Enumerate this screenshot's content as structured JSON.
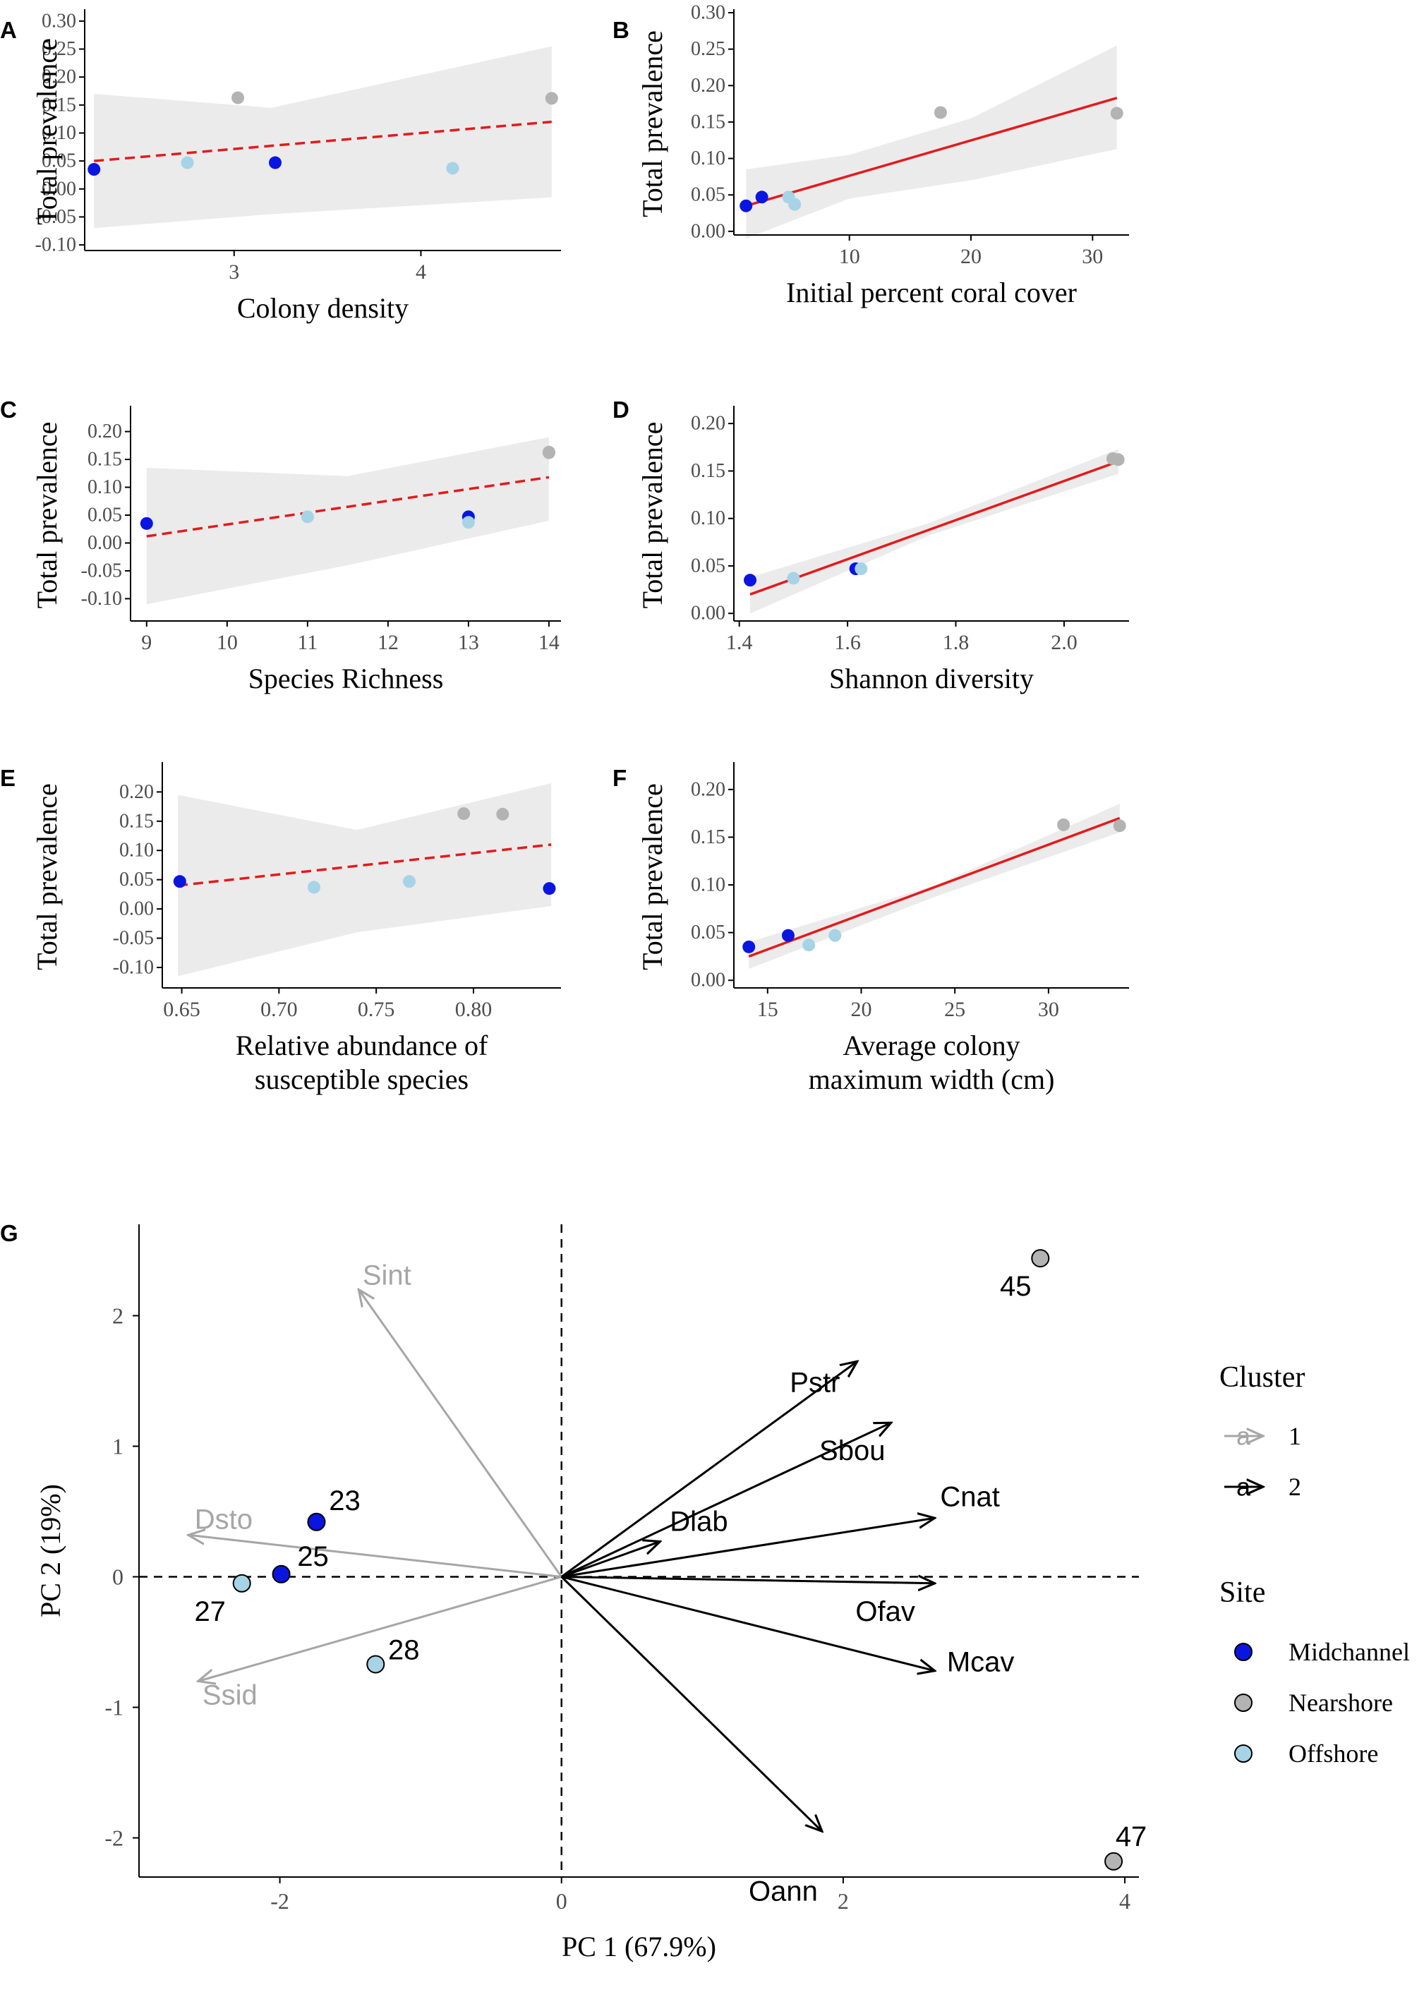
{
  "colors": {
    "midchannel": "#0a16e0",
    "nearshore": "#b3b3b3",
    "offshore": "#a7d3e6",
    "fit_line": "#e41a1c",
    "ci_band": "#ebebeb",
    "axis": "#000000",
    "cluster1": "#a6a6a6",
    "cluster2": "#000000"
  },
  "chart_data": [
    {
      "panel": "A",
      "type": "scatter",
      "xlabel": [
        "Colony density"
      ],
      "ylabel": "Total prevalence",
      "xlim": [
        2.2,
        4.75
      ],
      "ylim": [
        -0.11,
        0.315
      ],
      "xticks": [
        3,
        4
      ],
      "xtick_labels": [
        "3",
        "4"
      ],
      "yticks": [
        0.3,
        0.25,
        0.2,
        0.15,
        0.1,
        0.05,
        0.0,
        -0.05,
        -0.1
      ],
      "ytick_labels": [
        "0.30",
        "0.25",
        "0.20",
        "0.15",
        "0.10",
        "0.05",
        "0.00",
        "-0.05",
        "-0.10"
      ],
      "fit": {
        "style": "dashed",
        "x": [
          2.25,
          4.7
        ],
        "y": [
          0.05,
          0.12
        ]
      },
      "ci": {
        "x": [
          2.25,
          3.2,
          4.7
        ],
        "upper": [
          0.17,
          0.145,
          0.255
        ],
        "lower": [
          -0.07,
          -0.045,
          -0.015
        ]
      },
      "points": [
        {
          "x": 2.25,
          "y": 0.035,
          "site": "midchannel"
        },
        {
          "x": 3.22,
          "y": 0.047,
          "site": "midchannel"
        },
        {
          "x": 2.75,
          "y": 0.047,
          "site": "offshore"
        },
        {
          "x": 4.17,
          "y": 0.037,
          "site": "offshore"
        },
        {
          "x": 3.02,
          "y": 0.163,
          "site": "nearshore"
        },
        {
          "x": 4.7,
          "y": 0.162,
          "site": "nearshore"
        }
      ]
    },
    {
      "panel": "B",
      "type": "scatter",
      "xlabel": [
        "Initial percent coral cover"
      ],
      "ylabel": "Total prevalence",
      "xlim": [
        0.5,
        33.0
      ],
      "ylim": [
        -0.005,
        0.3
      ],
      "xticks": [
        10,
        20,
        30
      ],
      "xtick_labels": [
        "10",
        "20",
        "30"
      ],
      "yticks": [
        0.3,
        0.25,
        0.2,
        0.15,
        0.1,
        0.05,
        0.0
      ],
      "ytick_labels": [
        "0.30",
        "0.25",
        "0.20",
        "0.15",
        "0.10",
        "0.05",
        "0.00"
      ],
      "fit": {
        "style": "solid",
        "x": [
          1.5,
          32.0
        ],
        "y": [
          0.035,
          0.183
        ]
      },
      "ci": {
        "x": [
          1.5,
          10.0,
          20.0,
          32.0
        ],
        "upper": [
          0.085,
          0.105,
          0.155,
          0.255
        ],
        "lower": [
          -0.01,
          0.045,
          0.07,
          0.113
        ]
      },
      "points": [
        {
          "x": 1.5,
          "y": 0.035,
          "site": "midchannel"
        },
        {
          "x": 2.8,
          "y": 0.047,
          "site": "midchannel"
        },
        {
          "x": 5.0,
          "y": 0.047,
          "site": "offshore"
        },
        {
          "x": 5.5,
          "y": 0.037,
          "site": "offshore"
        },
        {
          "x": 17.5,
          "y": 0.163,
          "site": "nearshore"
        },
        {
          "x": 32.0,
          "y": 0.162,
          "site": "nearshore"
        }
      ]
    },
    {
      "panel": "C",
      "type": "scatter",
      "xlabel": [
        "Species Richness"
      ],
      "ylabel": "Total prevalence",
      "xlim": [
        8.8,
        14.15
      ],
      "ylim": [
        -0.14,
        0.24
      ],
      "xticks": [
        9,
        10,
        11,
        12,
        13,
        14
      ],
      "xtick_labels": [
        "9",
        "10",
        "11",
        "12",
        "13",
        "14"
      ],
      "yticks": [
        0.2,
        0.15,
        0.1,
        0.05,
        0.0,
        -0.05,
        -0.1
      ],
      "ytick_labels": [
        "0.20",
        "0.15",
        "0.10",
        "0.05",
        "0.00",
        "-0.05",
        "-0.10"
      ],
      "fit": {
        "style": "dashed",
        "x": [
          9,
          14
        ],
        "y": [
          0.012,
          0.118
        ]
      },
      "ci": {
        "x": [
          9,
          11.5,
          14
        ],
        "upper": [
          0.135,
          0.12,
          0.19
        ],
        "lower": [
          -0.11,
          -0.04,
          0.04
        ]
      },
      "points": [
        {
          "x": 9.0,
          "y": 0.035,
          "site": "midchannel"
        },
        {
          "x": 13.0,
          "y": 0.047,
          "site": "midchannel"
        },
        {
          "x": 11.0,
          "y": 0.047,
          "site": "offshore"
        },
        {
          "x": 13.0,
          "y": 0.037,
          "site": "offshore"
        },
        {
          "x": 14.0,
          "y": 0.163,
          "site": "nearshore"
        },
        {
          "x": 14.0,
          "y": 0.162,
          "site": "nearshore"
        }
      ]
    },
    {
      "panel": "D",
      "type": "scatter",
      "xlabel": [
        "Shannon diversity"
      ],
      "ylabel": "Total prevalence",
      "xlim": [
        1.39,
        2.12
      ],
      "ylim": [
        -0.008,
        0.215
      ],
      "xticks": [
        1.4,
        1.6,
        1.8,
        2.0
      ],
      "xtick_labels": [
        "1.4",
        "1.6",
        "1.8",
        "2.0"
      ],
      "yticks": [
        0.2,
        0.15,
        0.1,
        0.05,
        0.0
      ],
      "ytick_labels": [
        "0.20",
        "0.15",
        "0.10",
        "0.05",
        "0.00"
      ],
      "fit": {
        "style": "solid",
        "x": [
          1.42,
          2.1
        ],
        "y": [
          0.02,
          0.16
        ]
      },
      "ci": {
        "x": [
          1.42,
          1.75,
          2.1
        ],
        "upper": [
          0.038,
          0.095,
          0.173
        ],
        "lower": [
          0.0,
          0.082,
          0.147
        ]
      },
      "points": [
        {
          "x": 1.42,
          "y": 0.035,
          "site": "midchannel"
        },
        {
          "x": 1.615,
          "y": 0.047,
          "site": "midchannel"
        },
        {
          "x": 1.625,
          "y": 0.047,
          "site": "offshore"
        },
        {
          "x": 1.5,
          "y": 0.037,
          "site": "offshore"
        },
        {
          "x": 2.09,
          "y": 0.163,
          "site": "nearshore"
        },
        {
          "x": 2.1,
          "y": 0.162,
          "site": "nearshore"
        }
      ]
    },
    {
      "panel": "E",
      "type": "scatter",
      "xlabel": [
        "Relative abundance of",
        "susceptible species"
      ],
      "ylabel": "Total prevalence",
      "xlim": [
        0.64,
        0.845
      ],
      "ylim": [
        -0.135,
        0.245
      ],
      "xticks": [
        0.65,
        0.7,
        0.75,
        0.8
      ],
      "xtick_labels": [
        "0.65",
        "0.70",
        "0.75",
        "0.80"
      ],
      "yticks": [
        0.2,
        0.15,
        0.1,
        0.05,
        0.0,
        -0.05,
        -0.1
      ],
      "ytick_labels": [
        "0.20",
        "0.15",
        "0.10",
        "0.05",
        "0.00",
        "-0.05",
        "-0.10"
      ],
      "fit": {
        "style": "dashed",
        "x": [
          0.648,
          0.84
        ],
        "y": [
          0.04,
          0.11
        ]
      },
      "ci": {
        "x": [
          0.648,
          0.74,
          0.84
        ],
        "upper": [
          0.195,
          0.135,
          0.215
        ],
        "lower": [
          -0.115,
          -0.04,
          0.005
        ]
      },
      "points": [
        {
          "x": 0.649,
          "y": 0.047,
          "site": "midchannel"
        },
        {
          "x": 0.839,
          "y": 0.035,
          "site": "midchannel"
        },
        {
          "x": 0.718,
          "y": 0.037,
          "site": "offshore"
        },
        {
          "x": 0.767,
          "y": 0.047,
          "site": "offshore"
        },
        {
          "x": 0.795,
          "y": 0.163,
          "site": "nearshore"
        },
        {
          "x": 0.815,
          "y": 0.162,
          "site": "nearshore"
        }
      ]
    },
    {
      "panel": "F",
      "type": "scatter",
      "xlabel": [
        "Average colony",
        "maximum width (cm)"
      ],
      "ylabel": "Total prevalence",
      "xlim": [
        13.2,
        34.3
      ],
      "ylim": [
        -0.008,
        0.225
      ],
      "xticks": [
        15,
        20,
        25,
        30
      ],
      "xtick_labels": [
        "15",
        "20",
        "25",
        "30"
      ],
      "yticks": [
        0.2,
        0.15,
        0.1,
        0.05,
        0.0
      ],
      "ytick_labels": [
        "0.20",
        "0.15",
        "0.10",
        "0.05",
        "0.00"
      ],
      "fit": {
        "style": "solid",
        "x": [
          14.0,
          33.8
        ],
        "y": [
          0.025,
          0.17
        ]
      },
      "ci": {
        "x": [
          14.0,
          24.0,
          33.8
        ],
        "upper": [
          0.04,
          0.1,
          0.185
        ],
        "lower": [
          0.012,
          0.088,
          0.155
        ]
      },
      "points": [
        {
          "x": 14.0,
          "y": 0.035,
          "site": "midchannel"
        },
        {
          "x": 16.1,
          "y": 0.047,
          "site": "midchannel"
        },
        {
          "x": 17.2,
          "y": 0.037,
          "site": "offshore"
        },
        {
          "x": 18.6,
          "y": 0.047,
          "site": "offshore"
        },
        {
          "x": 30.8,
          "y": 0.163,
          "site": "nearshore"
        },
        {
          "x": 33.8,
          "y": 0.162,
          "site": "nearshore"
        }
      ]
    },
    {
      "panel": "G",
      "type": "biplot",
      "xlabel": "PC 1 (67.9%)",
      "ylabel": "PC 2 (19%)",
      "xlim": [
        -3.0,
        4.1
      ],
      "ylim": [
        -2.3,
        2.7
      ],
      "xticks": [
        -2,
        0,
        2,
        4
      ],
      "xtick_labels": [
        "-2",
        "0",
        "2",
        "4"
      ],
      "yticks": [
        2,
        1,
        0,
        -1,
        -2
      ],
      "ytick_labels": [
        "2",
        "1",
        "0",
        "-1",
        "-2"
      ],
      "points": [
        {
          "label": "23",
          "x": -1.74,
          "y": 0.42,
          "site": "midchannel"
        },
        {
          "label": "25",
          "x": -1.99,
          "y": 0.02,
          "site": "midchannel"
        },
        {
          "label": "27",
          "x": -2.27,
          "y": -0.05,
          "site": "offshore"
        },
        {
          "label": "28",
          "x": -1.32,
          "y": -0.67,
          "site": "offshore"
        },
        {
          "label": "45",
          "x": 3.4,
          "y": 2.44,
          "site": "nearshore"
        },
        {
          "label": "47",
          "x": 3.92,
          "y": -2.18,
          "site": "nearshore"
        }
      ],
      "arrows": [
        {
          "label": "Sint",
          "x": -1.44,
          "y": 2.2,
          "cluster": "1"
        },
        {
          "label": "Dsto",
          "x": -2.65,
          "y": 0.32,
          "cluster": "1"
        },
        {
          "label": "Ssid",
          "x": -2.58,
          "y": -0.8,
          "cluster": "1"
        },
        {
          "label": "Pstr",
          "x": 2.1,
          "y": 1.65,
          "cluster": "2"
        },
        {
          "label": "Sbou",
          "x": 2.34,
          "y": 1.18,
          "cluster": "2"
        },
        {
          "label": "Cnat",
          "x": 2.65,
          "y": 0.45,
          "cluster": "2"
        },
        {
          "label": "Dlab",
          "x": 0.7,
          "y": 0.27,
          "cluster": "2"
        },
        {
          "label": "Ofav",
          "x": 2.65,
          "y": -0.05,
          "cluster": "2"
        },
        {
          "label": "Mcav",
          "x": 2.65,
          "y": -0.72,
          "cluster": "2"
        },
        {
          "label": "Oann",
          "x": 1.85,
          "y": -1.95,
          "cluster": "2"
        }
      ],
      "legend": {
        "cluster_title": "Cluster",
        "cluster_glyph": "a",
        "cluster_items": [
          {
            "label": "1",
            "cluster": "1"
          },
          {
            "label": "2",
            "cluster": "2"
          }
        ],
        "site_title": "Site",
        "site_items": [
          {
            "label": "Midchannel",
            "site": "midchannel"
          },
          {
            "label": "Nearshore",
            "site": "nearshore"
          },
          {
            "label": "Offshore",
            "site": "offshore"
          }
        ]
      }
    }
  ]
}
